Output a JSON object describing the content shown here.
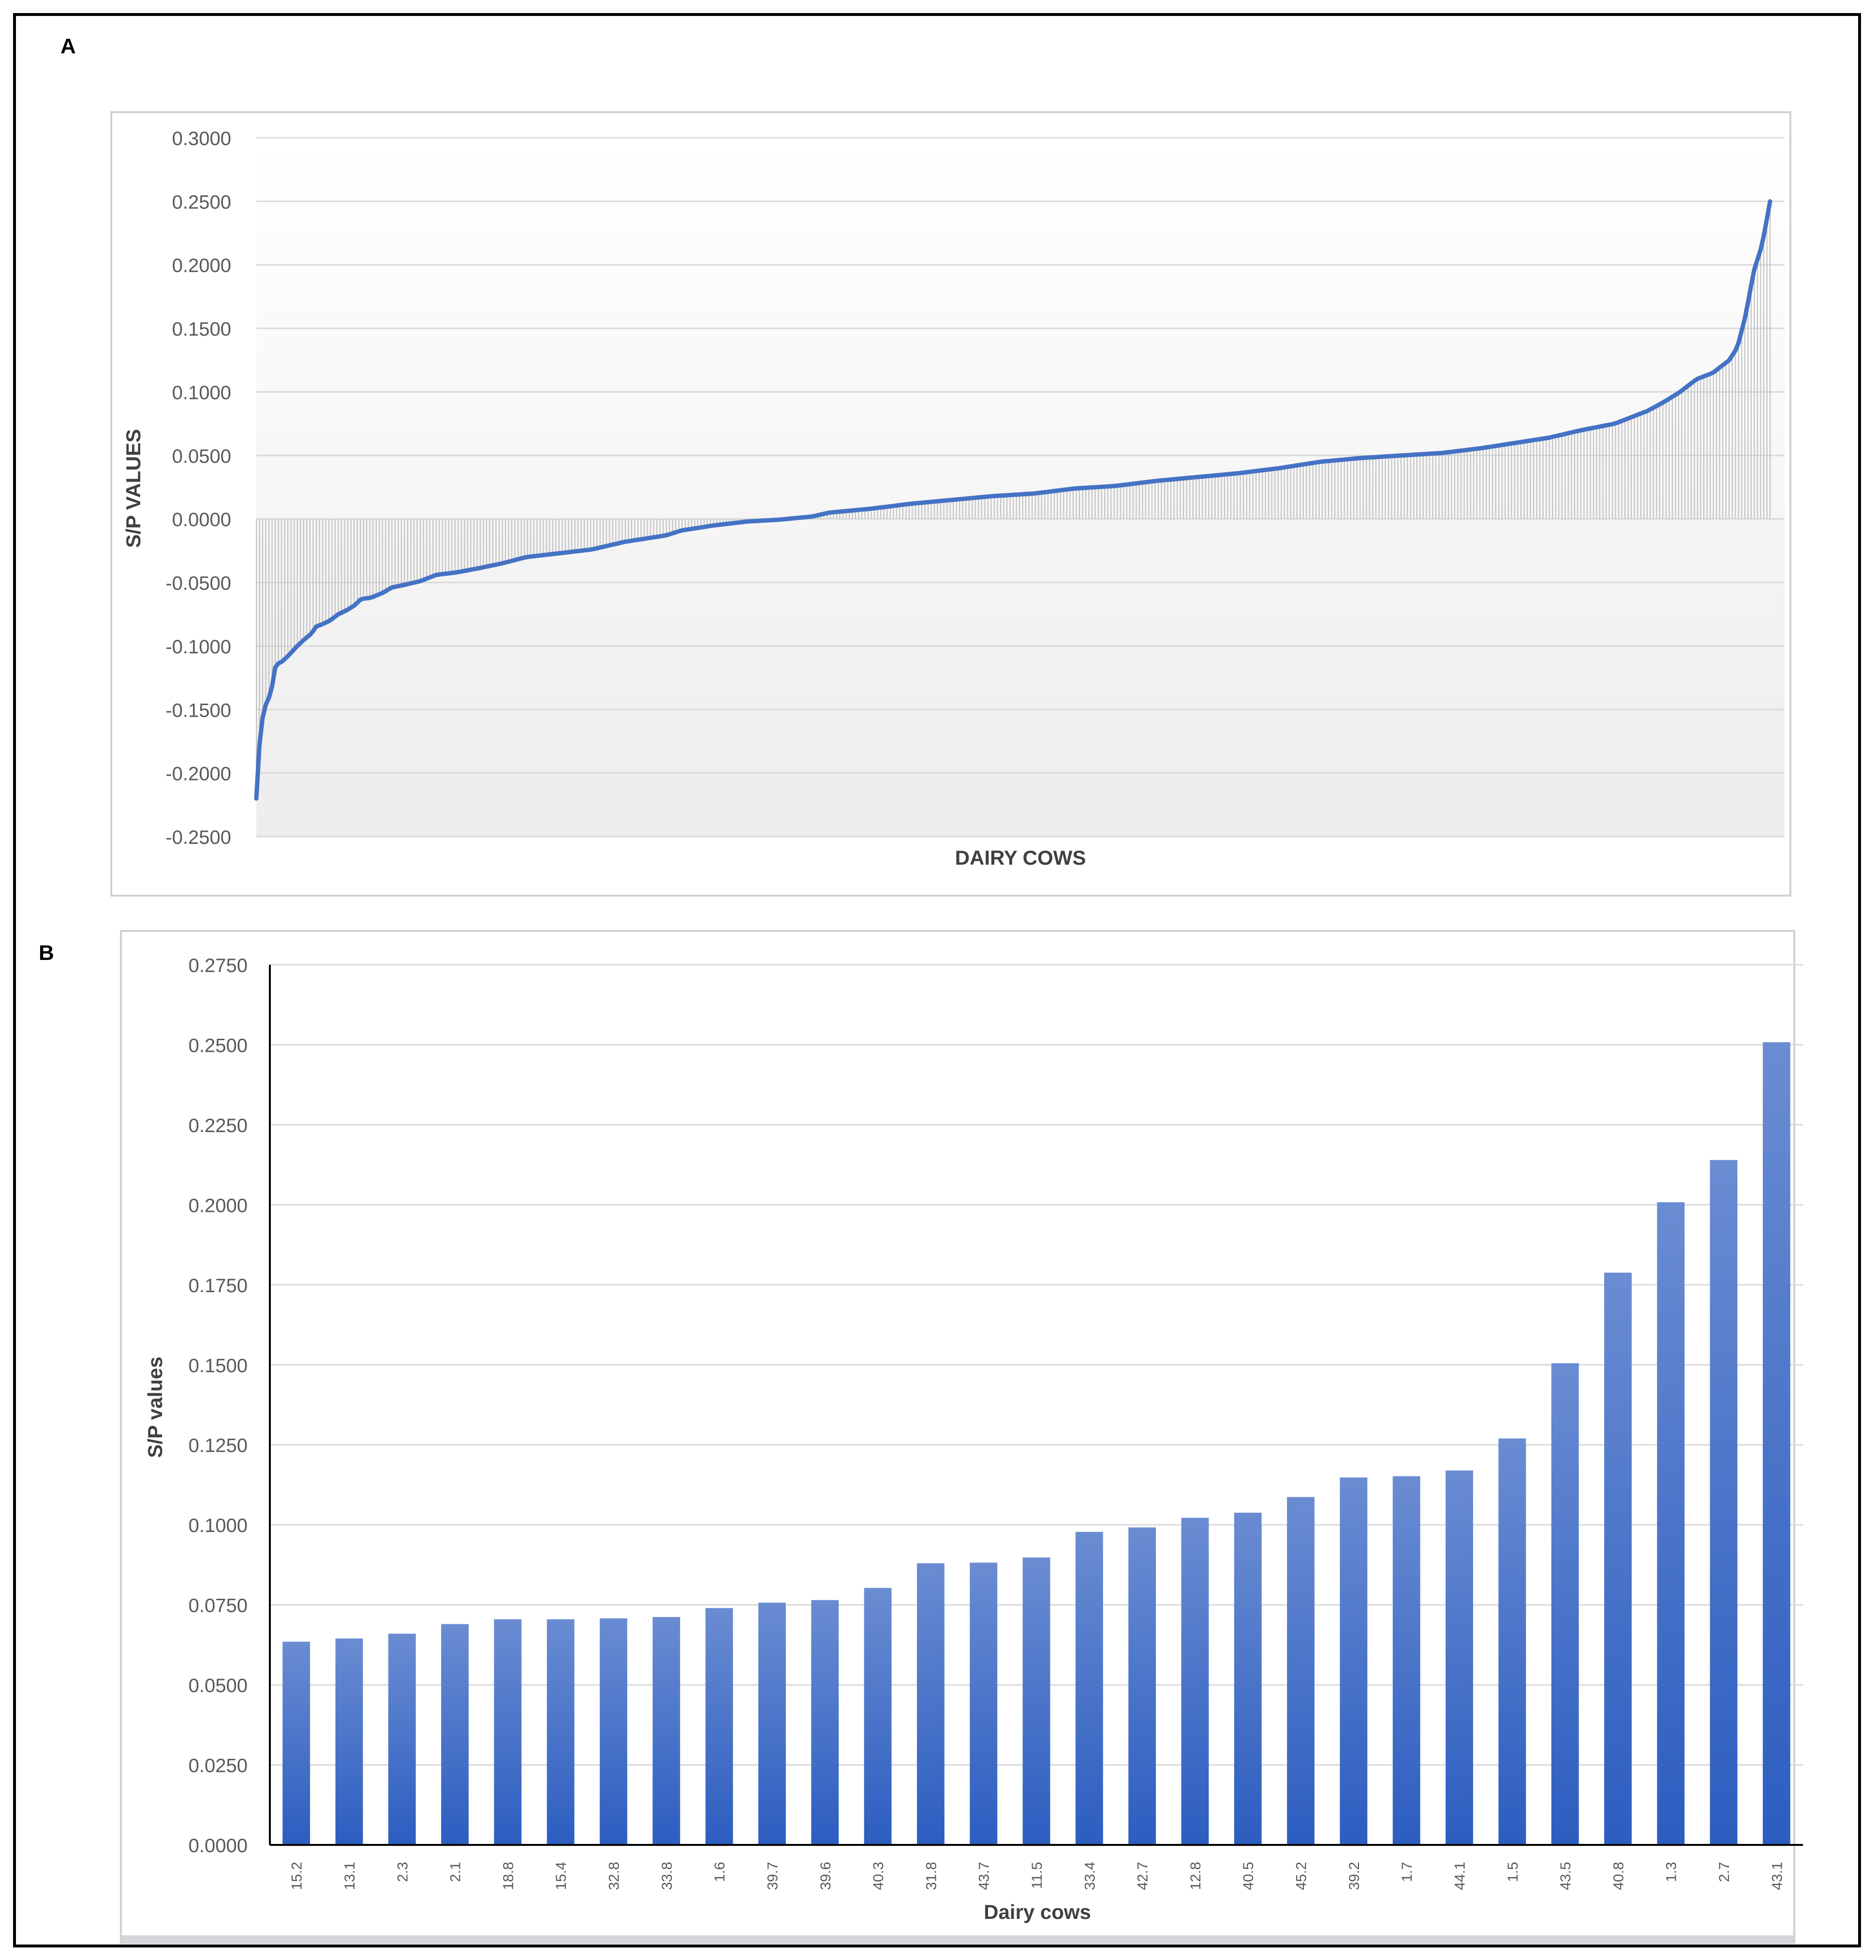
{
  "panels": {
    "a_label": "A",
    "b_label": "B"
  },
  "colors": {
    "line": "#4472C4",
    "bar_top": "#6689D1",
    "bar_bottom": "#2F5FC0",
    "grid": "#D9D9D9",
    "axis_text": "#595959",
    "drop": "#BFBFBF"
  },
  "chart_data": [
    {
      "id": "A",
      "type": "line",
      "title": "",
      "xlabel": "DAIRY COWS",
      "ylabel": "S/P VALUES",
      "ylim": [
        -0.25,
        0.3
      ],
      "yticks": [
        "0.3000",
        "0.2500",
        "0.2000",
        "0.1500",
        "0.1000",
        "0.0500",
        "0.0000",
        "-0.0500",
        "-0.1000",
        "-0.1500",
        "-0.2000",
        "-0.2500"
      ],
      "ytick_values": [
        0.3,
        0.25,
        0.2,
        0.15,
        0.1,
        0.05,
        0.0,
        -0.05,
        -0.1,
        -0.15,
        -0.2,
        -0.25
      ],
      "grid": true,
      "drop_lines": true,
      "sorted_ascending": true,
      "y_profile": [
        [
          0.0,
          -0.22
        ],
        [
          0.002,
          -0.19
        ],
        [
          0.005,
          -0.17
        ],
        [
          0.008,
          -0.155
        ],
        [
          0.012,
          -0.145
        ],
        [
          0.016,
          -0.14
        ],
        [
          0.02,
          -0.13
        ],
        [
          0.022,
          -0.118
        ],
        [
          0.026,
          -0.114
        ],
        [
          0.032,
          -0.112
        ],
        [
          0.04,
          -0.107
        ],
        [
          0.05,
          -0.1
        ],
        [
          0.06,
          -0.094
        ],
        [
          0.068,
          -0.09
        ],
        [
          0.072,
          -0.085
        ],
        [
          0.08,
          -0.083
        ],
        [
          0.09,
          -0.08
        ],
        [
          0.1,
          -0.075
        ],
        [
          0.11,
          -0.072
        ],
        [
          0.12,
          -0.068
        ],
        [
          0.128,
          -0.063
        ],
        [
          0.14,
          -0.062
        ],
        [
          0.155,
          -0.058
        ],
        [
          0.165,
          -0.054
        ],
        [
          0.18,
          -0.052
        ],
        [
          0.2,
          -0.049
        ],
        [
          0.22,
          -0.044
        ],
        [
          0.245,
          -0.042
        ],
        [
          0.27,
          -0.039
        ],
        [
          0.3,
          -0.035
        ],
        [
          0.33,
          -0.03
        ],
        [
          0.37,
          -0.027
        ],
        [
          0.41,
          -0.024
        ],
        [
          0.45,
          -0.018
        ],
        [
          0.5,
          -0.013
        ],
        [
          0.52,
          -0.009
        ],
        [
          0.56,
          -0.005
        ],
        [
          0.6,
          -0.002
        ],
        [
          0.64,
          -0.0005
        ],
        [
          0.68,
          0.002
        ],
        [
          0.7,
          0.005
        ],
        [
          0.75,
          0.008
        ],
        [
          0.8,
          0.012
        ],
        [
          0.85,
          0.015
        ],
        [
          0.9,
          0.018
        ],
        [
          0.95,
          0.02
        ],
        [
          1.0,
          0.024
        ],
        [
          1.05,
          0.026
        ],
        [
          1.1,
          0.03
        ],
        [
          1.15,
          0.033
        ],
        [
          1.2,
          0.036
        ],
        [
          1.25,
          0.04
        ],
        [
          1.3,
          0.045
        ],
        [
          1.35,
          0.048
        ],
        [
          1.4,
          0.05
        ],
        [
          1.45,
          0.052
        ],
        [
          1.5,
          0.056
        ],
        [
          1.54,
          0.06
        ],
        [
          1.58,
          0.064
        ],
        [
          1.62,
          0.07
        ],
        [
          1.66,
          0.075
        ],
        [
          1.7,
          0.085
        ],
        [
          1.72,
          0.092
        ],
        [
          1.74,
          0.1
        ],
        [
          1.76,
          0.11
        ],
        [
          1.78,
          0.115
        ],
        [
          1.8,
          0.125
        ],
        [
          1.81,
          0.135
        ],
        [
          1.82,
          0.16
        ],
        [
          1.83,
          0.195
        ],
        [
          1.84,
          0.215
        ],
        [
          1.85,
          0.25
        ]
      ]
    },
    {
      "id": "B",
      "type": "bar",
      "title": "",
      "xlabel": "Dairy cows",
      "ylabel": "S/P values",
      "ylim": [
        0,
        0.275
      ],
      "yticks": [
        "0.2750",
        "0.2500",
        "0.2250",
        "0.2000",
        "0.1750",
        "0.1500",
        "0.1250",
        "0.1000",
        "0.0750",
        "0.0500",
        "0.0250",
        "0.0000"
      ],
      "ytick_values": [
        0.275,
        0.25,
        0.225,
        0.2,
        0.175,
        0.15,
        0.125,
        0.1,
        0.075,
        0.05,
        0.025,
        0.0
      ],
      "grid": true,
      "categories": [
        "15.2",
        "13.1",
        "2.3",
        "2.1",
        "18.8",
        "15.4",
        "32.8",
        "33.8",
        "1.6",
        "39.7",
        "39.6",
        "40.3",
        "31.8",
        "43.7",
        "11.5",
        "33.4",
        "42.7",
        "12.8",
        "40.5",
        "45.2",
        "39.2",
        "1.7",
        "44.1",
        "1.5",
        "43.5",
        "40.8",
        "1.3",
        "2.7",
        "43.1"
      ],
      "values": [
        0.0635,
        0.0645,
        0.066,
        0.069,
        0.0705,
        0.0705,
        0.0708,
        0.0712,
        0.074,
        0.0757,
        0.0765,
        0.0803,
        0.088,
        0.0882,
        0.0898,
        0.0978,
        0.0992,
        0.1022,
        0.1038,
        0.1087,
        0.1148,
        0.1152,
        0.117,
        0.127,
        0.1505,
        0.1788,
        0.2008,
        0.214,
        0.2508
      ]
    }
  ]
}
